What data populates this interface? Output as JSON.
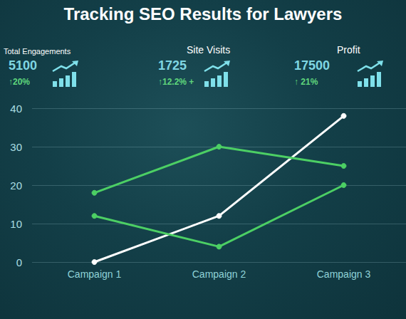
{
  "chart_data": {
    "type": "line",
    "title": "Tracking SEO Results for Lawyers",
    "categories": [
      "Campaign 1",
      "Campaign 2",
      "Campaign 3"
    ],
    "series": [
      {
        "color": "#ffffff",
        "values": [
          0,
          12,
          38
        ]
      },
      {
        "color": "#4ccf64",
        "values": [
          18,
          30,
          25
        ]
      },
      {
        "color": "#4ccf64",
        "values": [
          12,
          4,
          20
        ]
      }
    ],
    "marker": "circle",
    "ylim": [
      0,
      40
    ],
    "yticks": [
      0,
      10,
      20,
      30,
      40
    ],
    "grid": true
  },
  "kpis": [
    {
      "label": "Total Engagements",
      "value": 5100,
      "change": "↑20%"
    },
    {
      "label": "Site Visits",
      "value": 1725,
      "change": "↑12.2% +"
    },
    {
      "label": "Profit",
      "value": 17500,
      "change": "↑ 21%"
    }
  ]
}
